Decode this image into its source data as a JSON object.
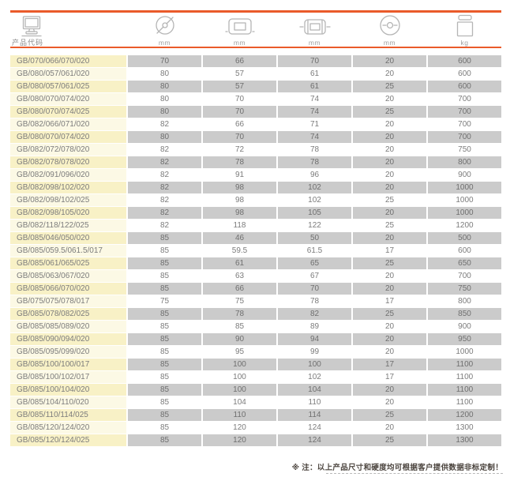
{
  "colors": {
    "accent_orange": "#ea5a2a",
    "row_yellow_shaded": "#f8f1c6",
    "row_yellow_light": "#fcf9e5",
    "row_gray": "#cbcbcb",
    "text_gray": "#7c7c7c"
  },
  "header": {
    "product_code_label": "产品代码",
    "columns": [
      {
        "icon": "diameter-icon",
        "unit": "mm"
      },
      {
        "icon": "roller-face-icon",
        "unit": "mm"
      },
      {
        "icon": "roller-overall-width-icon",
        "unit": "mm"
      },
      {
        "icon": "bore-diameter-icon",
        "unit": "mm"
      },
      {
        "icon": "weight-icon",
        "unit": "kg"
      }
    ]
  },
  "table": {
    "rows": [
      [
        "GB/070/066/070/020",
        "70",
        "66",
        "70",
        "20",
        "600"
      ],
      [
        "GB/080/057/061/020",
        "80",
        "57",
        "61",
        "20",
        "600"
      ],
      [
        "GB/080/057/061/025",
        "80",
        "57",
        "61",
        "25",
        "600"
      ],
      [
        "GB/080/070/074/020",
        "80",
        "70",
        "74",
        "20",
        "700"
      ],
      [
        "GB/080/070/074/025",
        "80",
        "70",
        "74",
        "25",
        "700"
      ],
      [
        "GB/082/066/071/020",
        "82",
        "66",
        "71",
        "20",
        "700"
      ],
      [
        "GB/080/070/074/020",
        "80",
        "70",
        "74",
        "20",
        "700"
      ],
      [
        "GB/082/072/078/020",
        "82",
        "72",
        "78",
        "20",
        "750"
      ],
      [
        "GB/082/078/078/020",
        "82",
        "78",
        "78",
        "20",
        "800"
      ],
      [
        "GB/082/091/096/020",
        "82",
        "91",
        "96",
        "20",
        "900"
      ],
      [
        "GB/082/098/102/020",
        "82",
        "98",
        "102",
        "20",
        "1000"
      ],
      [
        "GB/082/098/102/025",
        "82",
        "98",
        "102",
        "25",
        "1000"
      ],
      [
        "GB/082/098/105/020",
        "82",
        "98",
        "105",
        "20",
        "1000"
      ],
      [
        "GB/082/118/122/025",
        "82",
        "118",
        "122",
        "25",
        "1200"
      ],
      [
        "GB/085/046/050/020",
        "85",
        "46",
        "50",
        "20",
        "500"
      ],
      [
        "GB/085/059.5/061.5/017",
        "85",
        "59.5",
        "61.5",
        "17",
        "600"
      ],
      [
        "GB/085/061/065/025",
        "85",
        "61",
        "65",
        "25",
        "650"
      ],
      [
        "GB/085/063/067/020",
        "85",
        "63",
        "67",
        "20",
        "700"
      ],
      [
        "GB/085/066/070/020",
        "85",
        "66",
        "70",
        "20",
        "750"
      ],
      [
        "GB/075/075/078/017",
        "75",
        "75",
        "78",
        "17",
        "800"
      ],
      [
        "GB/085/078/082/025",
        "85",
        "78",
        "82",
        "25",
        "850"
      ],
      [
        "GB/085/085/089/020",
        "85",
        "85",
        "89",
        "20",
        "900"
      ],
      [
        "GB/085/090/094/020",
        "85",
        "90",
        "94",
        "20",
        "950"
      ],
      [
        "GB/085/095/099/020",
        "85",
        "95",
        "99",
        "20",
        "1000"
      ],
      [
        "GB/085/100/100/017",
        "85",
        "100",
        "100",
        "17",
        "1100"
      ],
      [
        "GB/085/100/102/017",
        "85",
        "100",
        "102",
        "17",
        "1100"
      ],
      [
        "GB/085/100/104/020",
        "85",
        "100",
        "104",
        "20",
        "1100"
      ],
      [
        "GB/085/104/110/020",
        "85",
        "104",
        "110",
        "20",
        "1100"
      ],
      [
        "GB/085/110/114/025",
        "85",
        "110",
        "114",
        "25",
        "1200"
      ],
      [
        "GB/085/120/124/020",
        "85",
        "120",
        "124",
        "20",
        "1300"
      ],
      [
        "GB/085/120/124/025",
        "85",
        "120",
        "124",
        "25",
        "1300"
      ]
    ]
  },
  "footer": {
    "note": "※ 注：以上产品尺寸和硬度均可根据客户提供数据非标定制！"
  }
}
